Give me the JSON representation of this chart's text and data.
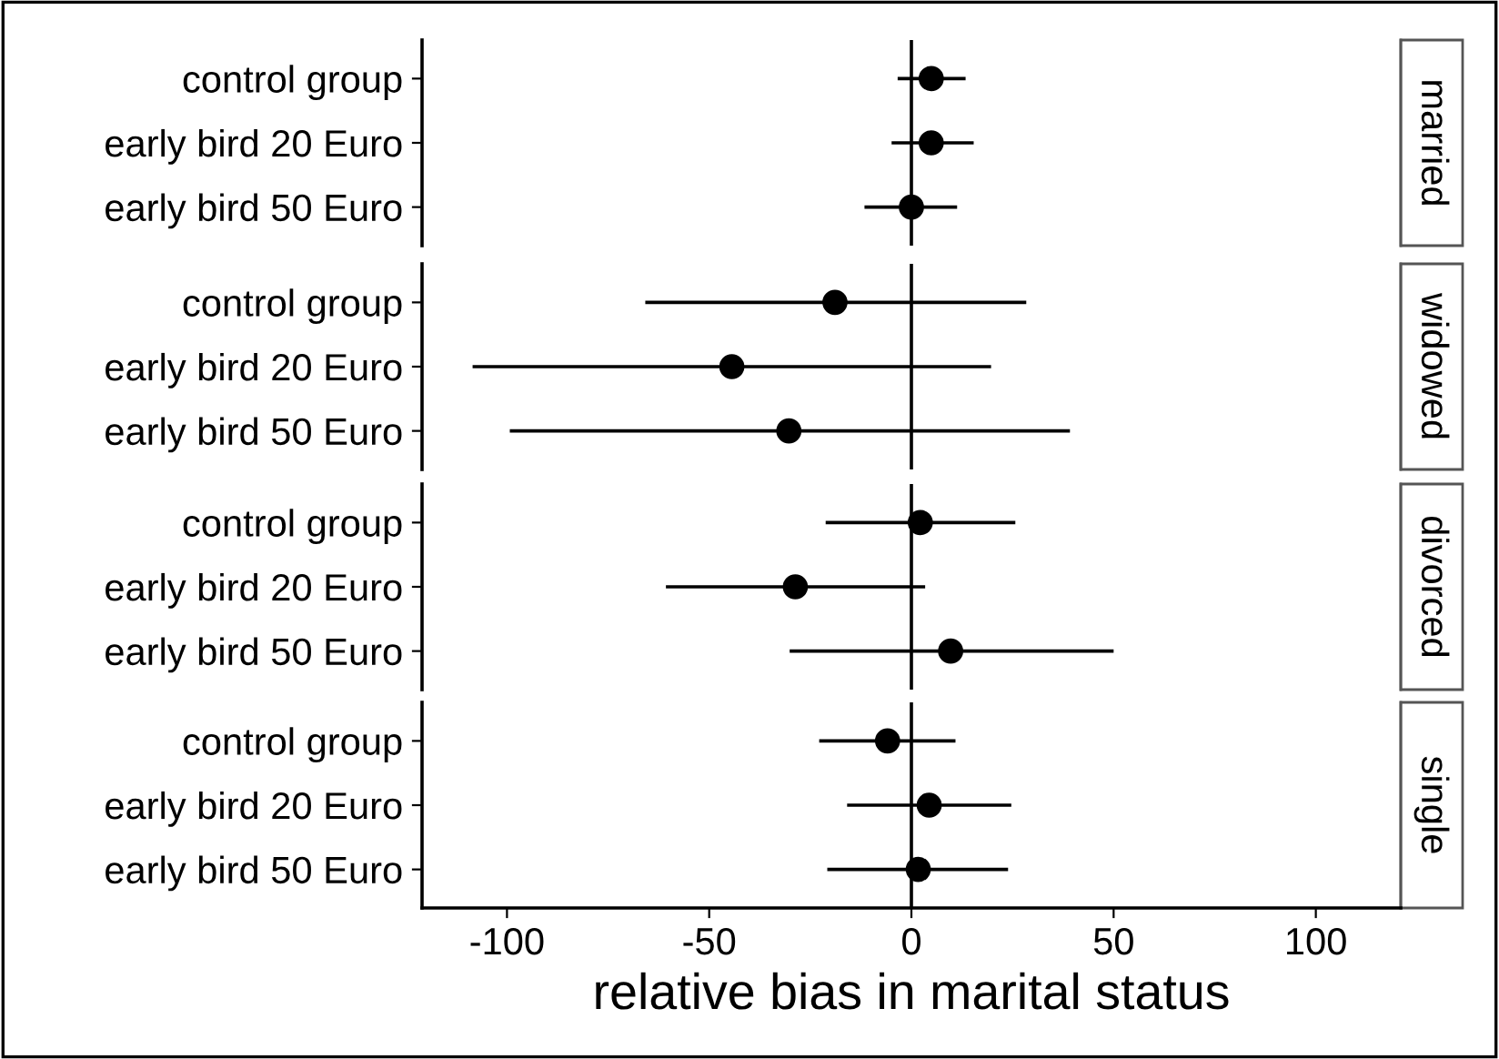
{
  "chart_data": [
    {
      "type": "scatter",
      "orientation": "horizontal",
      "y2label": "married",
      "categories": [
        "control group",
        "early bird 20 Euro",
        "early bird 50 Euro"
      ],
      "values": [
        4.9,
        4.9,
        0
      ],
      "errors": [
        [
          -3.4,
          13.4
        ],
        [
          -4.9,
          15.4
        ],
        [
          -11.6,
          11.3
        ]
      ],
      "color": "#000000",
      "xlim": [
        -121,
        121
      ],
      "xticks": [
        -100,
        -50,
        0,
        50,
        100
      ],
      "tick_labels": "y",
      "marker": "circle",
      "ref_lines": [
        {
          "axis": "x",
          "value": 0,
          "color": "#000000"
        }
      ]
    },
    {
      "type": "scatter",
      "orientation": "horizontal",
      "y2label": "widowed",
      "categories": [
        "control group",
        "early bird 20 Euro",
        "early bird 50 Euro"
      ],
      "values": [
        -18.9,
        -44.4,
        -30.3
      ],
      "errors": [
        [
          -65.8,
          28.4
        ],
        [
          -108.5,
          19.7
        ],
        [
          -99.3,
          39.2
        ]
      ],
      "color": "#000000",
      "xlim": [
        -121,
        121
      ],
      "xticks": [
        -100,
        -50,
        0,
        50,
        100
      ],
      "tick_labels": "y",
      "marker": "circle",
      "ref_lines": [
        {
          "axis": "x",
          "value": 0,
          "color": "#000000"
        }
      ]
    },
    {
      "type": "scatter",
      "orientation": "horizontal",
      "y2label": "divorced",
      "categories": [
        "control group",
        "early bird 20 Euro",
        "early bird 50 Euro"
      ],
      "values": [
        2.2,
        -28.7,
        9.7
      ],
      "errors": [
        [
          -21.2,
          25.7
        ],
        [
          -60.7,
          3.4
        ],
        [
          -30.1,
          50.0
        ]
      ],
      "color": "#000000",
      "xlim": [
        -121,
        121
      ],
      "xticks": [
        -100,
        -50,
        0,
        50,
        100
      ],
      "tick_labels": "y",
      "marker": "circle",
      "ref_lines": [
        {
          "axis": "x",
          "value": 0,
          "color": "#000000"
        }
      ]
    },
    {
      "type": "scatter",
      "orientation": "horizontal",
      "y2label": "single",
      "xlabel": "relative bias in marital status",
      "categories": [
        "control group",
        "early bird 20 Euro",
        "early bird 50 Euro"
      ],
      "values": [
        -5.9,
        4.4,
        1.7
      ],
      "errors": [
        [
          -22.8,
          10.9
        ],
        [
          -15.9,
          24.7
        ],
        [
          -20.8,
          23.9
        ]
      ],
      "color": "#000000",
      "xlim": [
        -121,
        121
      ],
      "xticks": [
        -100,
        -50,
        0,
        50,
        100
      ],
      "marker": "circle",
      "ref_lines": [
        {
          "axis": "x",
          "value": 0,
          "color": "#000000"
        }
      ]
    }
  ]
}
